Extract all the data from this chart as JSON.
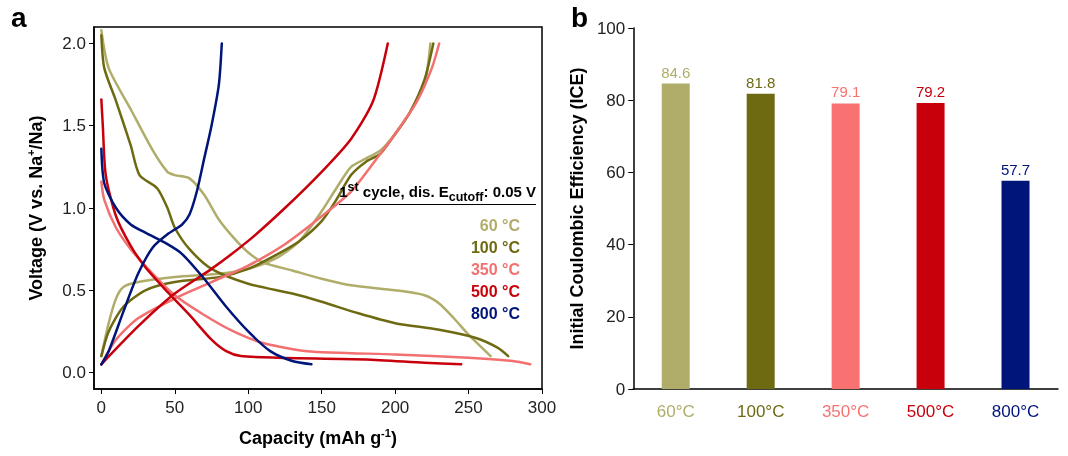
{
  "chart_data": [
    {
      "type": "line",
      "title": "a",
      "xlabel": "Capacity (mAh g$^{-1}$)",
      "ylabel": "Voltage (V vs. Na$^{+}$/Na)",
      "legend_title": "1$^{st}$ cycle, dis. E$_{cutoff}$: 0.05 V",
      "xlim": [
        -5,
        300
      ],
      "xticks": [
        0,
        50,
        100,
        150,
        200,
        250,
        300
      ],
      "ylim": [
        -0.1,
        2.1
      ],
      "yticks": [
        {
          "value": 0,
          "label": "0.0"
        },
        {
          "value": 0.5,
          "label": "0.5"
        },
        {
          "value": 1,
          "label": "1.0"
        },
        {
          "value": 1.5,
          "label": "1.5"
        },
        {
          "value": 2,
          "label": "2.0"
        }
      ],
      "grid": false,
      "legend": "right",
      "marker": "none",
      "line_style": "solid",
      "series": [
        {
          "name": "60 °C",
          "color": "#b0ad6a",
          "x": [
            0,
            5,
            20,
            35,
            45,
            50,
            60,
            70,
            80,
            90,
            100,
            110,
            130,
            150,
            170,
            200,
            220,
            230,
            240,
            250,
            265
          ],
          "values": [
            2.08,
            1.85,
            1.6,
            1.35,
            1.22,
            1.2,
            1.18,
            1.08,
            0.93,
            0.82,
            0.73,
            0.67,
            0.62,
            0.57,
            0.53,
            0.5,
            0.47,
            0.42,
            0.33,
            0.23,
            0.1
          ]
        },
        {
          "color": "#b0ad6a",
          "x": [
            0,
            5,
            10,
            15,
            25,
            50,
            80,
            100,
            120,
            135,
            150,
            160,
            170,
            180,
            190,
            200,
            210,
            220,
            224
          ],
          "values": [
            0.1,
            0.3,
            0.45,
            0.52,
            0.55,
            0.58,
            0.6,
            0.63,
            0.7,
            0.8,
            0.98,
            1.12,
            1.25,
            1.3,
            1.35,
            1.45,
            1.58,
            1.75,
            2.0
          ]
        },
        {
          "name": "100 °C",
          "color": "#6e6a12",
          "x": [
            0,
            2,
            10,
            20,
            26,
            38,
            45,
            50,
            60,
            75,
            100,
            130,
            150,
            175,
            200,
            230,
            255,
            270,
            277
          ],
          "values": [
            2.05,
            1.85,
            1.65,
            1.38,
            1.2,
            1.12,
            1.0,
            0.88,
            0.75,
            0.63,
            0.54,
            0.48,
            0.43,
            0.36,
            0.3,
            0.26,
            0.21,
            0.15,
            0.1
          ]
        },
        {
          "color": "#6e6a12",
          "x": [
            0,
            5,
            15,
            30,
            50,
            80,
            100,
            120,
            135,
            150,
            160,
            170,
            180,
            190,
            200,
            210,
            220,
            226
          ],
          "values": [
            0.1,
            0.25,
            0.4,
            0.5,
            0.55,
            0.58,
            0.63,
            0.72,
            0.8,
            0.92,
            1.05,
            1.2,
            1.28,
            1.33,
            1.45,
            1.58,
            1.78,
            2.0
          ]
        },
        {
          "name": "350 °C",
          "color": "#f27070",
          "x": [
            0,
            2,
            10,
            20,
            35,
            50,
            70,
            90,
            110,
            140,
            200,
            250,
            280,
            292
          ],
          "values": [
            1.16,
            1.05,
            0.88,
            0.75,
            0.6,
            0.47,
            0.35,
            0.25,
            0.18,
            0.13,
            0.11,
            0.09,
            0.07,
            0.05
          ]
        },
        {
          "color": "#f27070",
          "x": [
            0,
            10,
            25,
            50,
            75,
            100,
            125,
            150,
            170,
            190,
            200,
            215,
            225,
            230
          ],
          "values": [
            0.05,
            0.2,
            0.33,
            0.45,
            0.55,
            0.65,
            0.78,
            0.95,
            1.1,
            1.33,
            1.45,
            1.65,
            1.85,
            2.0
          ]
        },
        {
          "name": "500 °C",
          "color": "#c8000c",
          "x": [
            0,
            1,
            3,
            10,
            20,
            30,
            45,
            60,
            75,
            85,
            95,
            120,
            180,
            220,
            245
          ],
          "values": [
            1.66,
            1.5,
            1.2,
            0.95,
            0.77,
            0.64,
            0.49,
            0.35,
            0.2,
            0.13,
            0.1,
            0.09,
            0.08,
            0.06,
            0.05
          ]
        },
        {
          "color": "#c8000c",
          "x": [
            0,
            25,
            50,
            75,
            100,
            125,
            150,
            170,
            185,
            195
          ],
          "values": [
            0.05,
            0.28,
            0.48,
            0.63,
            0.8,
            1.0,
            1.22,
            1.42,
            1.65,
            2.0
          ]
        },
        {
          "name": "800 °C",
          "color": "#00157a",
          "x": [
            0,
            2,
            10,
            20,
            30,
            45,
            55,
            70,
            85,
            100,
            115,
            130,
            143
          ],
          "values": [
            1.36,
            1.15,
            1.0,
            0.9,
            0.85,
            0.78,
            0.72,
            0.57,
            0.4,
            0.25,
            0.13,
            0.07,
            0.05
          ]
        },
        {
          "color": "#00157a",
          "x": [
            0,
            5,
            15,
            25,
            35,
            45,
            55,
            60,
            65,
            70,
            75,
            80,
            82
          ],
          "values": [
            0.05,
            0.13,
            0.37,
            0.6,
            0.76,
            0.84,
            0.9,
            0.96,
            1.1,
            1.3,
            1.5,
            1.75,
            2.0
          ]
        }
      ]
    },
    {
      "type": "bar",
      "title": "b",
      "ylabel": "Initial Coulombic Efficiency (ICE)",
      "categories": [
        "60°C",
        "100°C",
        "350°C",
        "500°C",
        "800°C"
      ],
      "values": [
        84.6,
        81.8,
        79.1,
        79.2,
        57.7
      ],
      "colors": [
        "#b0ad6a",
        "#6e6a12",
        "#f87272",
        "#c8000c",
        "#00157a"
      ],
      "ylim": [
        0,
        100
      ],
      "yticks": [
        0,
        20,
        40,
        60,
        80,
        100
      ],
      "grid": false,
      "data_labels": true
    }
  ]
}
